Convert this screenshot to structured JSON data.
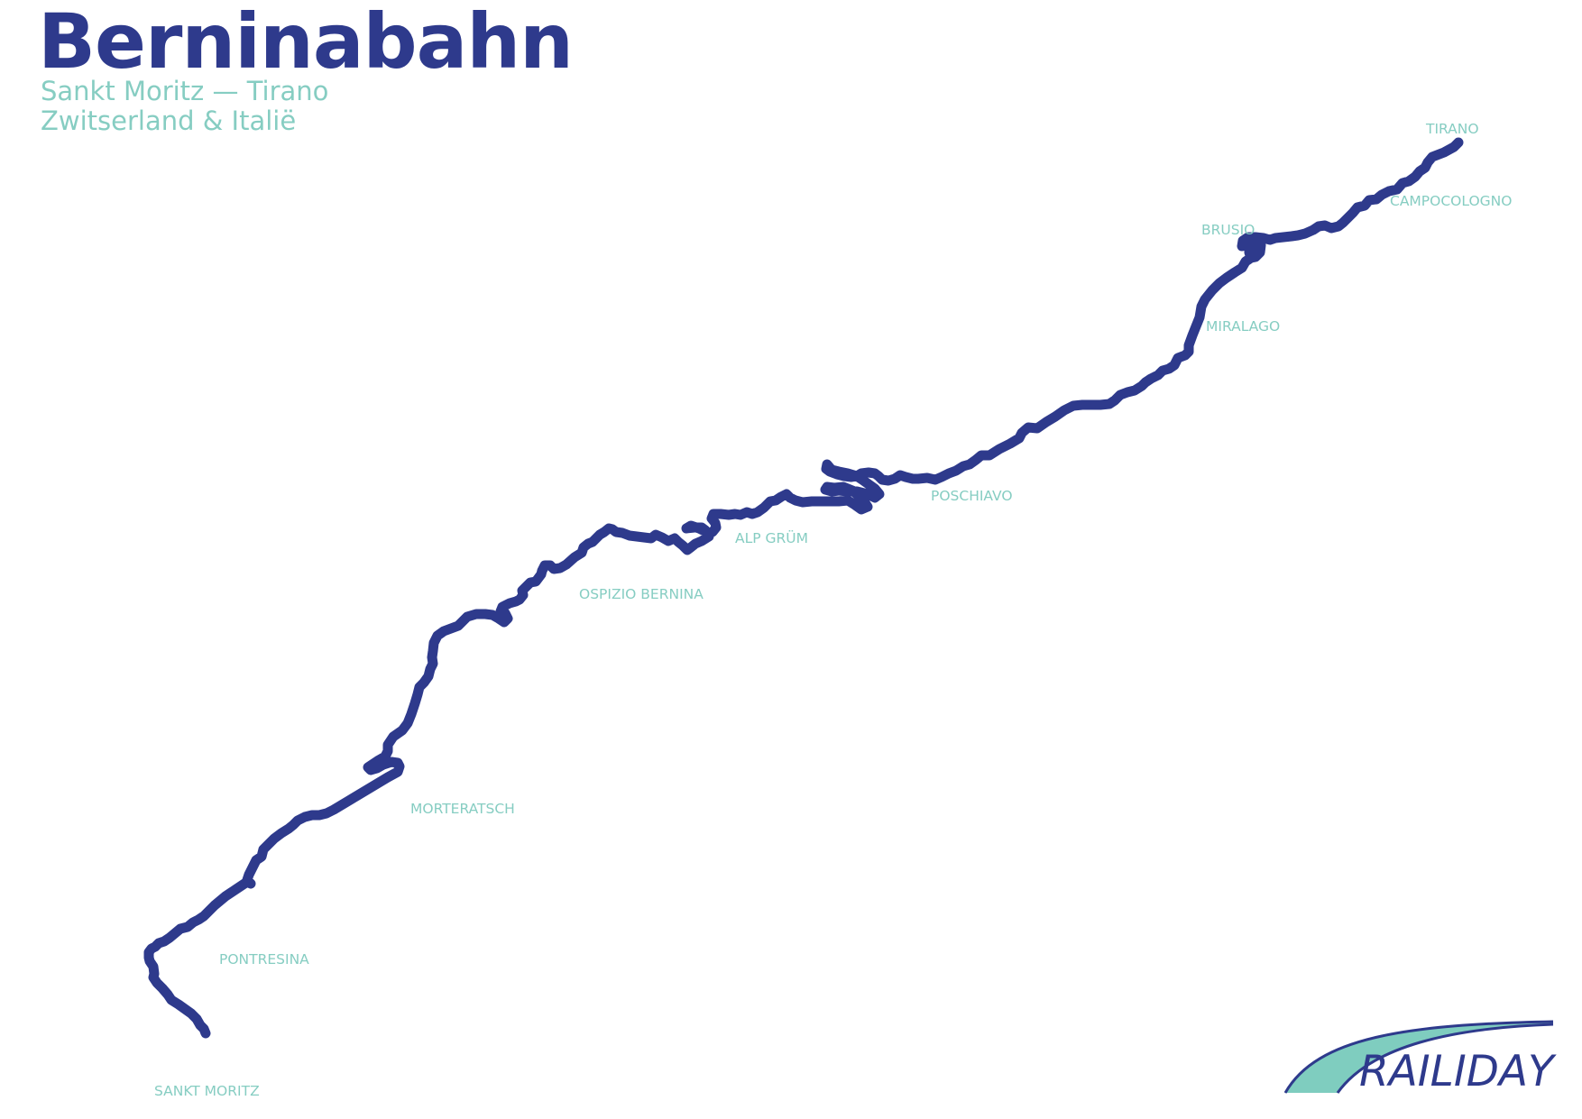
{
  "header": {
    "title": "Berninabahn",
    "route": "Sankt Moritz — Tirano",
    "countries": "Zwitserland & Italië"
  },
  "map": {
    "route_color": "#2e3a8c",
    "label_color": "#86cdc2",
    "stations": [
      "TIRANO",
      "CAMPOCOLOGNO",
      "BRUSIO",
      "MIRALAGO",
      "POSCHIAVO",
      "ALP GRÜM",
      "OSPIZIO BERNINA",
      "MORTERATSCH",
      "PONTRESINA",
      "SANKT MORITZ"
    ]
  },
  "logo": {
    "text": "RAILIDAY",
    "primary_color": "#2e3a8c",
    "accent_color": "#7fcdbf"
  }
}
